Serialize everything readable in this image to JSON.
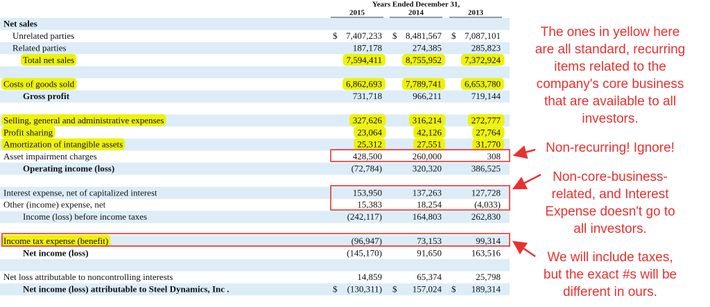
{
  "header": {
    "title": "Years Ended December 31,",
    "years": [
      "2015",
      "2014",
      "2013"
    ]
  },
  "rows": [
    {
      "label": "Net sales"
    },
    {
      "label": "Unrelated parties",
      "dollars": [
        "$",
        "$",
        "$"
      ],
      "values": [
        "7,407,233",
        "8,481,567",
        "7,087,101"
      ]
    },
    {
      "label": "Related parties",
      "values": [
        "187,178",
        "274,385",
        "285,823"
      ]
    },
    {
      "label": "Total net sales",
      "values": [
        "7,594,411",
        "8,755,952",
        "7,372,924"
      ]
    },
    {
      "label": "Costs of goods sold",
      "values": [
        "6,862,693",
        "7,789,741",
        "6,653,780"
      ]
    },
    {
      "label": "Gross profit",
      "values": [
        "731,718",
        "966,211",
        "719,144"
      ]
    },
    {
      "label": "Selling, general and administrative expenses",
      "values": [
        "327,626",
        "316,214",
        "272,777"
      ]
    },
    {
      "label": "Profit sharing",
      "values": [
        "23,064",
        "42,126",
        "27,764"
      ]
    },
    {
      "label": "Amortization of intangible assets",
      "values": [
        "25,312",
        "27,551",
        "31,770"
      ]
    },
    {
      "label": "Asset impairment charges",
      "values": [
        "428,500",
        "260,000",
        "308"
      ]
    },
    {
      "label": "Operating income (loss)",
      "values": [
        "(72,784)",
        "320,320",
        "386,525"
      ]
    },
    {
      "label": "Interest expense, net of capitalized interest",
      "values": [
        "153,950",
        "137,263",
        "127,728"
      ]
    },
    {
      "label": "Other (income) expense, net",
      "values": [
        "15,383",
        "18,254",
        "(4,033)"
      ]
    },
    {
      "label": "Income (loss) before income taxes",
      "values": [
        "(242,117)",
        "164,803",
        "262,830"
      ]
    },
    {
      "label": "Income tax expense (benefit)",
      "values": [
        "(96,947)",
        "73,153",
        "99,314"
      ]
    },
    {
      "label": "Net income (loss)",
      "values": [
        "(145,170)",
        "91,650",
        "163,516"
      ]
    },
    {
      "label": "Net loss attributable to noncontrolling interests",
      "values": [
        "14,859",
        "65,374",
        "25,798"
      ]
    },
    {
      "label": "Net income (loss) attributable to Steel Dynamics, Inc .",
      "dollars": [
        "$",
        "$",
        "$"
      ],
      "values": [
        "(130,311)",
        "157,024",
        "189,314"
      ]
    }
  ],
  "annotations": [
    {
      "lines": [
        "The ones in yellow here",
        "are all standard, recurring",
        "items related to the",
        "company's core business",
        "that are available to all",
        "investors."
      ]
    },
    {
      "lines": [
        "Non-recurring! Ignore!"
      ]
    },
    {
      "lines": [
        "Non-core-business-",
        "related, and Interest",
        "Expense doesn't go to",
        "all investors."
      ]
    },
    {
      "lines": [
        "We will include taxes,",
        "but the exact #s will be",
        "different in ours."
      ]
    }
  ]
}
